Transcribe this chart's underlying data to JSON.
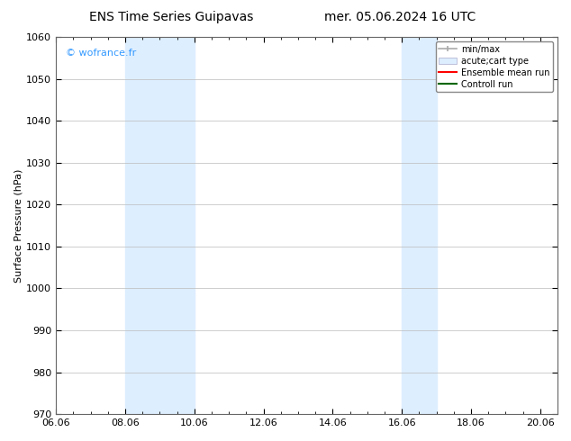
{
  "title_left": "ENS Time Series Guipavas",
  "title_right": "mer. 05.06.2024 16 UTC",
  "ylabel": "Surface Pressure (hPa)",
  "ylim": [
    970,
    1060
  ],
  "yticks": [
    970,
    980,
    990,
    1000,
    1010,
    1020,
    1030,
    1040,
    1050,
    1060
  ],
  "xlim": [
    0,
    14
  ],
  "xtick_labels": [
    "06.06",
    "08.06",
    "10.06",
    "12.06",
    "14.06",
    "16.06",
    "18.06",
    "20.06"
  ],
  "xtick_positions": [
    0,
    2,
    4,
    6,
    8,
    10,
    12,
    14
  ],
  "shaded_bands": [
    {
      "xmin": 2,
      "xmax": 4
    },
    {
      "xmin": 10,
      "xmax": 11
    }
  ],
  "shaded_color": "#ddeeff",
  "watermark_text": "© wofrance.fr",
  "watermark_color": "#3399ff",
  "legend_items": [
    {
      "label": "min/max",
      "color": "#aaaaaa",
      "type": "minmax"
    },
    {
      "label": "acute;cart type",
      "color": "#cccccc",
      "type": "band"
    },
    {
      "label": "Ensemble mean run",
      "color": "#ff0000",
      "type": "line"
    },
    {
      "label": "Controll run",
      "color": "#006600",
      "type": "line"
    }
  ],
  "bg_color": "#ffffff",
  "grid_color": "#bbbbbb",
  "title_fontsize": 10,
  "ylabel_fontsize": 8,
  "tick_fontsize": 8,
  "legend_fontsize": 7
}
